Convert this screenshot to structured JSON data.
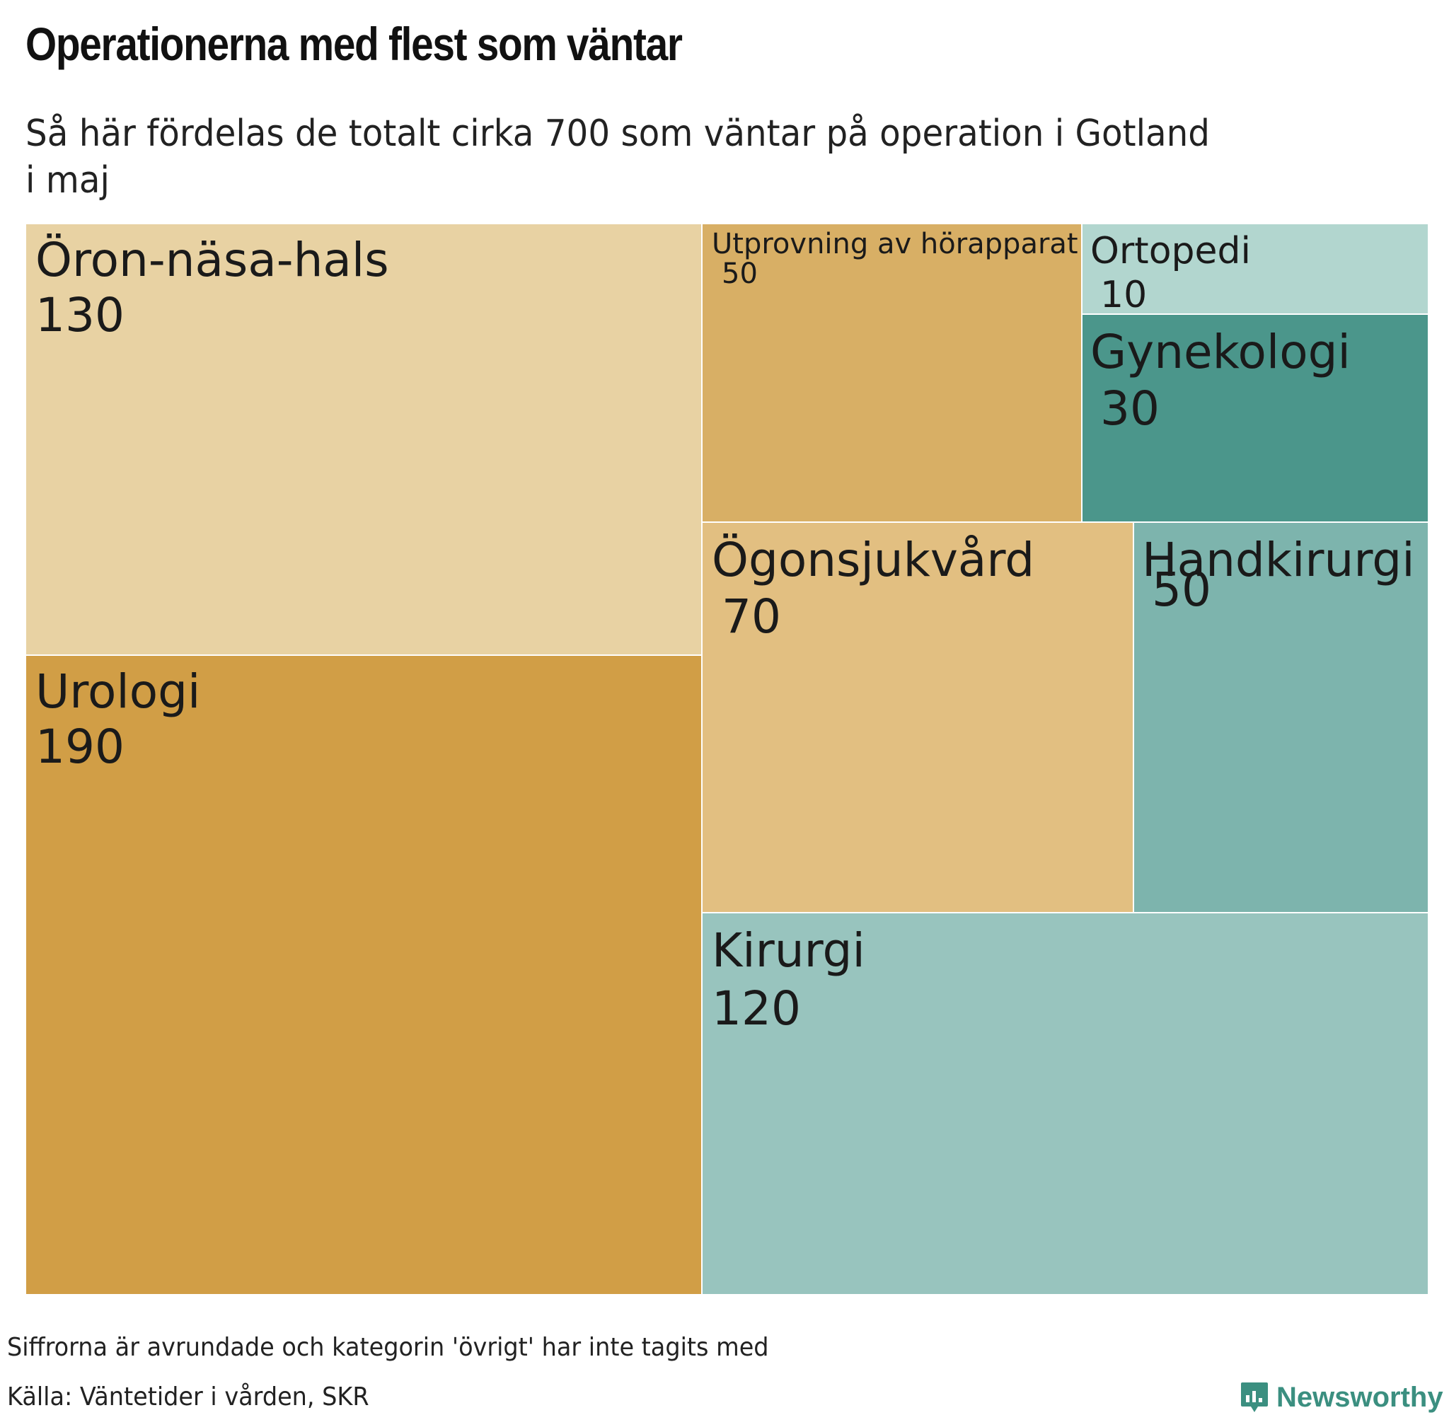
{
  "title": "Operationerna med flest som väntar",
  "subtitle": "Så här fördelas de totalt cirka 700 som väntar på operation i Gotland i maj",
  "footnote": "Siffrorna är avrundade och kategorin 'övrigt' har inte tagits med",
  "source": "Källa: Väntetider i vården, SKR",
  "brand": {
    "name": "Newsworthy",
    "icon": "bar-chart-speech-bubble-icon",
    "color": "#3b8f80"
  },
  "chart_data": {
    "type": "treemap",
    "total": 700,
    "items": [
      {
        "label": "Öron-näsa-hals",
        "value_label": "130",
        "value": 130,
        "color": "#e8d2a3"
      },
      {
        "label": "Urologi",
        "value_label": "190",
        "value": 190,
        "color": "#d19e46"
      },
      {
        "label": "Utprovning av hörapparat",
        "value_label": "50",
        "value": 50,
        "color": "#d8af65"
      },
      {
        "label": "Ortopedi",
        "value_label": "10",
        "value": 10,
        "color": "#b2d6cf"
      },
      {
        "label": "Gynekologi",
        "value_label": "30",
        "value": 30,
        "color": "#4b968b"
      },
      {
        "label": "Ögonsjukvård",
        "value_label": "70",
        "value": 70,
        "color": "#e2bf81"
      },
      {
        "label": "Handkirurgi",
        "value_label": "50",
        "value": 50,
        "color": "#7db4ad"
      },
      {
        "label": "Kirurgi",
        "value_label": "120",
        "value": 120,
        "color": "#98c4be"
      }
    ]
  }
}
